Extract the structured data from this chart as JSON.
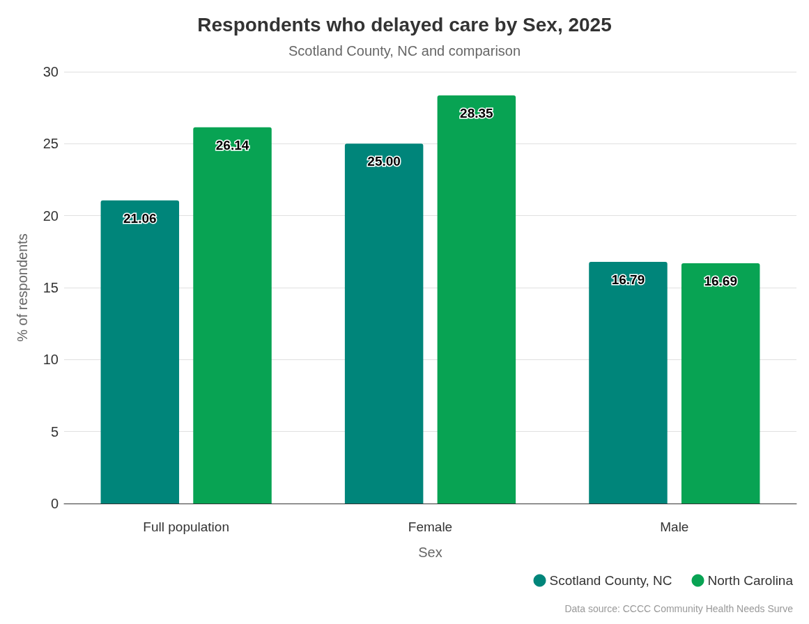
{
  "chart_data": {
    "type": "bar",
    "title": "Respondents who delayed care by Sex, 2025",
    "subtitle": "Scotland County, NC and comparison",
    "xlabel": "Sex",
    "ylabel": "% of respondents",
    "categories": [
      "Full population",
      "Female",
      "Male"
    ],
    "series": [
      {
        "name": "Scotland County, NC",
        "color": "#00857a",
        "values": [
          21.06,
          25.0,
          16.79
        ],
        "value_labels": [
          "21.06",
          "25.00",
          "16.79"
        ]
      },
      {
        "name": "North Carolina",
        "color": "#08a353",
        "values": [
          26.14,
          28.35,
          16.69
        ],
        "value_labels": [
          "26.14",
          "28.35",
          "16.69"
        ]
      }
    ],
    "ylim": [
      0,
      30
    ],
    "yticks": [
      0,
      5,
      10,
      15,
      20,
      25,
      30
    ],
    "grid": "y",
    "legend": "bottom right",
    "annotations": [
      "Data source: CCCC Community Health Needs Surve"
    ]
  }
}
